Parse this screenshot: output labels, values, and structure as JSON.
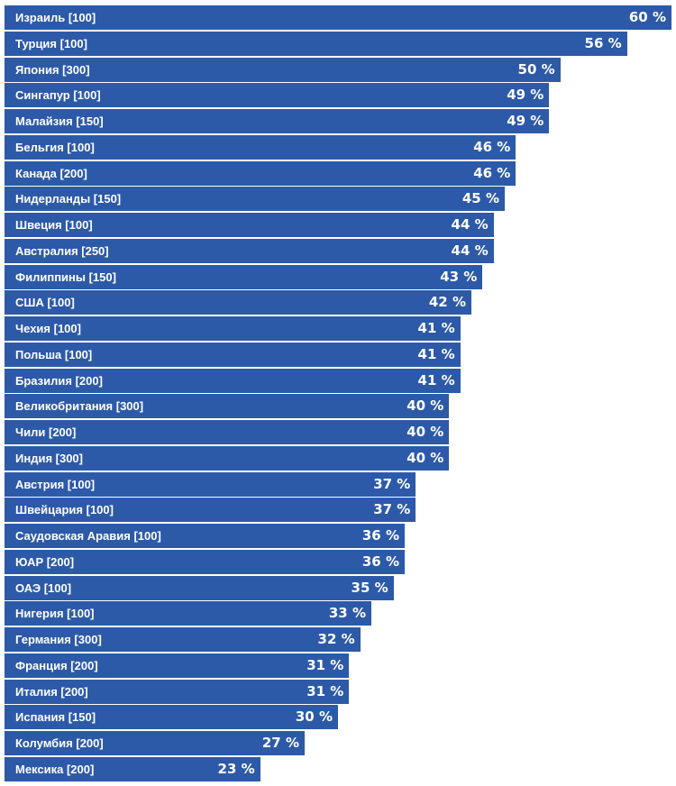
{
  "chart_data": {
    "type": "bar",
    "orientation": "horizontal",
    "bar_color": "#2d5aa8",
    "label_color": "#ffffff",
    "value_suffix": " %",
    "xlim": [
      0,
      60
    ],
    "categories": [
      "Израиль [100]",
      "Турция [100]",
      "Япония [300]",
      "Сингапур [100]",
      "Малайзия [150]",
      "Бельгия [100]",
      "Канада [200]",
      "Нидерланды [150]",
      "Швеция [100]",
      "Австралия [250]",
      "Филиппины [150]",
      "США [100]",
      "Чехия [100]",
      "Польша [100]",
      "Бразилия [200]",
      "Великобритания [300]",
      "Чили [200]",
      "Индия [300]",
      "Австрия [100]",
      "Швейцария [100]",
      "Саудовская Аравия [100]",
      "ЮАР [200]",
      "ОАЭ [100]",
      "Нигерия [100]",
      "Германия [300]",
      "Франция [200]",
      "Италия [200]",
      "Испания [150]",
      "Колумбия [200]",
      "Мексика [200]"
    ],
    "values": [
      60,
      56,
      50,
      49,
      49,
      46,
      46,
      45,
      44,
      44,
      43,
      42,
      41,
      41,
      41,
      40,
      40,
      40,
      37,
      37,
      36,
      36,
      35,
      33,
      32,
      31,
      31,
      30,
      27,
      23
    ]
  }
}
